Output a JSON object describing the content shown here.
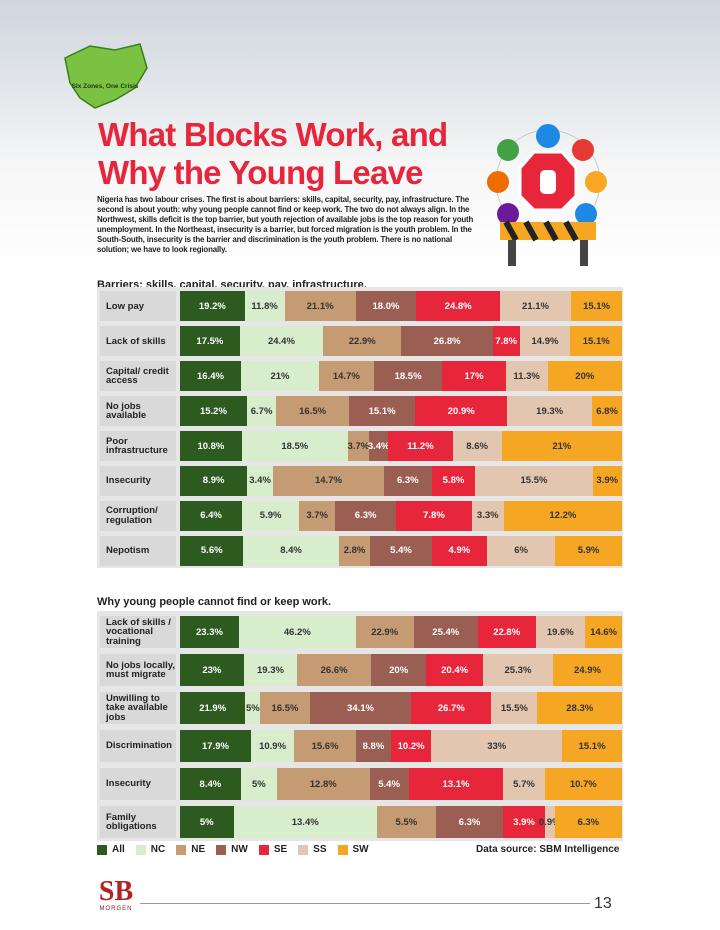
{
  "header": {
    "map_label": "Six Zones, One Crisis",
    "title": "What Blocks Work, and Why the Young Leave",
    "intro": "Nigeria has two labour crises. The first is about barriers: skills, capital, security, pay, infrastructure. The second is about youth: why young people cannot find or keep work. The two do not always align. In the Northwest, skills deficit is the top barrier, but youth rejection of available jobs is the top reason for youth unemployment. In the Northeast, insecurity is a barrier, but forced migration is the youth problem. In the South-South, insecurity is the barrier and discrimination is the youth problem. There is no national solution; we have to look regionally."
  },
  "chart_data": [
    {
      "type": "stacked-bar-100",
      "title": "Barriers: skills, capital, security, pay, infrastructure.",
      "categories": [
        "Low pay",
        "Lack of skills",
        "Capital/ credit access",
        "No jobs available",
        "Poor infrastructure",
        "Insecurity",
        "Corruption/ regulation",
        "Nepotism"
      ],
      "series": [
        {
          "values": [
            19.2,
            17.5,
            16.4,
            15.2,
            10.8,
            8.9,
            6.4,
            5.6
          ],
          "value_labels": [
            "19.2%",
            "17.5%",
            "16.4%",
            "15.2%",
            "10.8%",
            "8.9%",
            "6.4%",
            "5.6%"
          ]
        },
        {
          "values": [
            11.8,
            24.4,
            21,
            6.7,
            18.5,
            3.4,
            5.9,
            8.4
          ],
          "value_labels": [
            "11.8%",
            "24.4%",
            "21%",
            "6.7%",
            "18.5%",
            "3.4%",
            "5.9%",
            "8.4%"
          ]
        },
        {
          "values": [
            21.1,
            22.9,
            14.7,
            16.5,
            3.7,
            14.7,
            3.7,
            2.8
          ],
          "value_labels": [
            "21.1%",
            "22.9%",
            "14.7%",
            "16.5%",
            "3.7%",
            "14.7%",
            "3.7%",
            "2.8%"
          ]
        },
        {
          "values": [
            18.0,
            26.8,
            18.5,
            15.1,
            3.4,
            6.3,
            6.3,
            5.4
          ],
          "value_labels": [
            "18.0%",
            "26.8%",
            "18.5%",
            "15.1%",
            "3.4%",
            "6.3%",
            "6.3%",
            "5.4%"
          ]
        },
        {
          "values": [
            24.8,
            7.8,
            17,
            20.9,
            11.2,
            5.8,
            7.8,
            4.9
          ],
          "value_labels": [
            "24.8%",
            "7.8%",
            "17%",
            "20.9%",
            "11.2%",
            "5.8%",
            "7.8%",
            "4.9%"
          ]
        },
        {
          "values": [
            21.1,
            14.9,
            11.3,
            19.3,
            8.6,
            15.5,
            3.3,
            6
          ],
          "value_labels": [
            "21.1%",
            "14.9%",
            "11.3%",
            "19.3%",
            "8.6%",
            "15.5%",
            "3.3%",
            "6%"
          ]
        },
        {
          "values": [
            15.1,
            15.1,
            20,
            6.8,
            21,
            3.9,
            12.2,
            5.9
          ],
          "value_labels": [
            "15.1%",
            "15.1%",
            "20%",
            "6.8%",
            "21%",
            "3.9%",
            "12.2%",
            "5.9%"
          ]
        }
      ]
    },
    {
      "type": "stacked-bar-100",
      "title": "Why young people cannot find or keep work.",
      "categories": [
        "Lack of skills / vocational training",
        "No jobs locally, must migrate",
        "Unwilling to take available jobs",
        "Discrimination",
        "Insecurity",
        "Family obligations"
      ],
      "series": [
        {
          "values": [
            23.3,
            23,
            21.9,
            17.9,
            8.4,
            5
          ],
          "value_labels": [
            "23.3%",
            "23%",
            "21.9%",
            "17.9%",
            "8.4%",
            "5%"
          ]
        },
        {
          "values": [
            46.2,
            19.3,
            5,
            10.9,
            5,
            13.4
          ],
          "value_labels": [
            "46.2%",
            "19.3%",
            "5%",
            "10.9%",
            "5%",
            "13.4%"
          ]
        },
        {
          "values": [
            22.9,
            26.6,
            16.5,
            15.6,
            12.8,
            5.5
          ],
          "value_labels": [
            "22.9%",
            "26.6%",
            "16.5%",
            "15.6%",
            "12.8%",
            "5.5%"
          ]
        },
        {
          "values": [
            25.4,
            20,
            34.1,
            8.8,
            5.4,
            6.3
          ],
          "value_labels": [
            "25.4%",
            "20%",
            "34.1%",
            "8.8%",
            "5.4%",
            "6.3%"
          ]
        },
        {
          "values": [
            22.8,
            20.4,
            26.7,
            10.2,
            13.1,
            3.9
          ],
          "value_labels": [
            "22.8%",
            "20.4%",
            "26.7%",
            "10.2%",
            "13.1%",
            "3.9%"
          ]
        },
        {
          "values": [
            19.6,
            25.3,
            15.5,
            33,
            5.7,
            0.9
          ],
          "value_labels": [
            "19.6%",
            "25.3%",
            "15.5%",
            "33%",
            "5.7%",
            "0.9%"
          ]
        },
        {
          "values": [
            14.6,
            24.9,
            28.3,
            15.1,
            10.7,
            6.3
          ],
          "value_labels": [
            "14.6%",
            "24.9%",
            "28.3%",
            "15.1%",
            "10.7%",
            "6.3%"
          ]
        }
      ]
    }
  ],
  "legend": [
    {
      "name": "All",
      "color": "#2d5a1f"
    },
    {
      "name": "NC",
      "color": "#d8edcc"
    },
    {
      "name": "NE",
      "color": "#c49b72"
    },
    {
      "name": "NW",
      "color": "#9a5f52"
    },
    {
      "name": "SE",
      "color": "#e8263b"
    },
    {
      "name": "SS",
      "color": "#e2c6b0"
    },
    {
      "name": "SW",
      "color": "#f5a623"
    }
  ],
  "source": "Data source: SBM Intelligence",
  "logo": {
    "letters": "SB",
    "name": "MORGEN"
  },
  "page_number": "13"
}
